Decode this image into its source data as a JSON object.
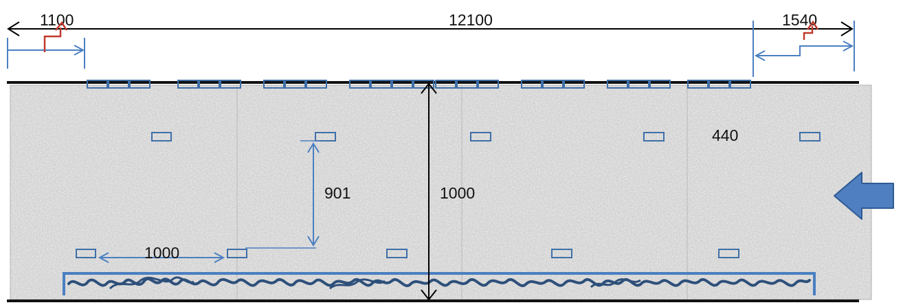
{
  "dimensions": {
    "top_left": "1100",
    "top_total": "12100",
    "top_right": "1540",
    "spacing_vertical": "901",
    "depth": "1000",
    "spacing_horizontal": "1000",
    "label_right": "440"
  },
  "colors": {
    "concrete": "#cfcfcf",
    "slab_line": "#111111",
    "element_outline": "#3e6fa8",
    "dimension_blue": "#4a7fc1",
    "arrow_red": "#c0392b",
    "arrow_fill": "#4f7fc0",
    "arrow_stroke": "#2e5a94",
    "scribble": "#2d4f7a"
  },
  "icons": {
    "flow_arrow": "left-arrow-icon"
  }
}
